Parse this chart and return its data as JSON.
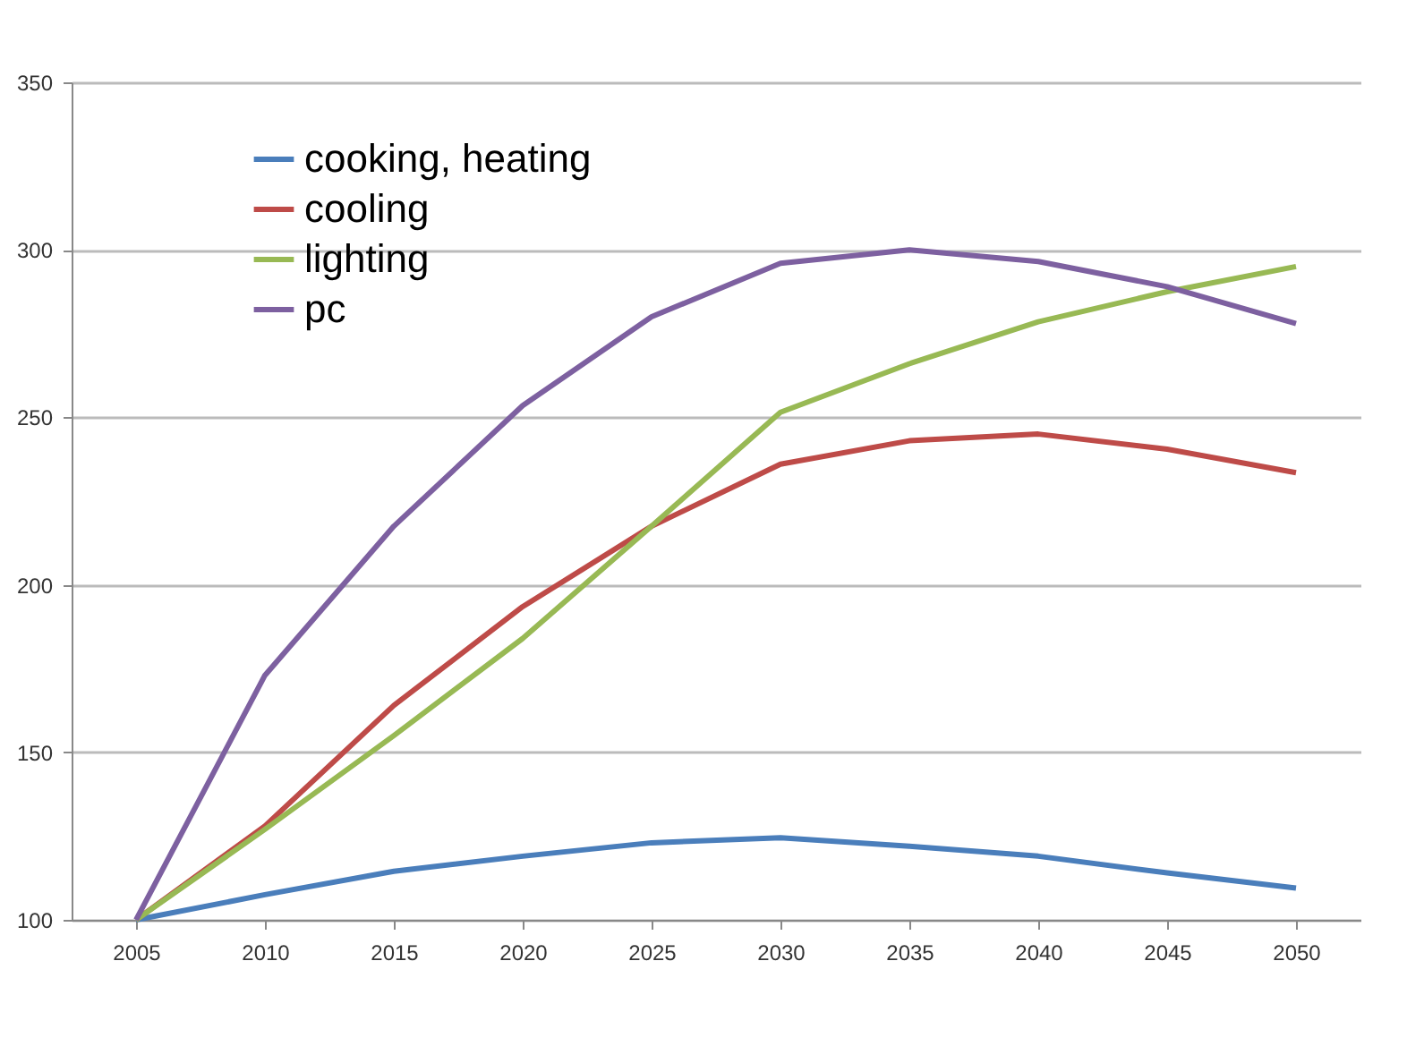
{
  "chart_data": {
    "type": "line",
    "categories": [
      "2005",
      "2010",
      "2015",
      "2020",
      "2025",
      "2030",
      "2035",
      "2040",
      "2045",
      "2050"
    ],
    "ylim": [
      100,
      350
    ],
    "yticks": [
      100,
      150,
      200,
      250,
      300,
      350
    ],
    "grid": "y",
    "legend": "top left",
    "line_style": "solid",
    "series": [
      {
        "name": "cooking, heating",
        "color": "#4a7ebb",
        "values": [
          100,
          107.5,
          114.5,
          119,
          123,
          124.5,
          122,
          119,
          114,
          109.5
        ]
      },
      {
        "name": "cooling",
        "color": "#be4b48",
        "values": [
          100,
          128,
          164,
          193.5,
          217.5,
          236,
          243,
          245,
          240.5,
          233.5
        ]
      },
      {
        "name": "lighting",
        "color": "#98b954",
        "values": [
          100,
          127,
          155,
          184,
          217.5,
          251.5,
          266,
          278.5,
          287.5,
          295
        ]
      },
      {
        "name": "pc",
        "color": "#7d60a0",
        "values": [
          100,
          173,
          217.5,
          253.5,
          280,
          296,
          300,
          296.5,
          289,
          278
        ]
      }
    ]
  }
}
